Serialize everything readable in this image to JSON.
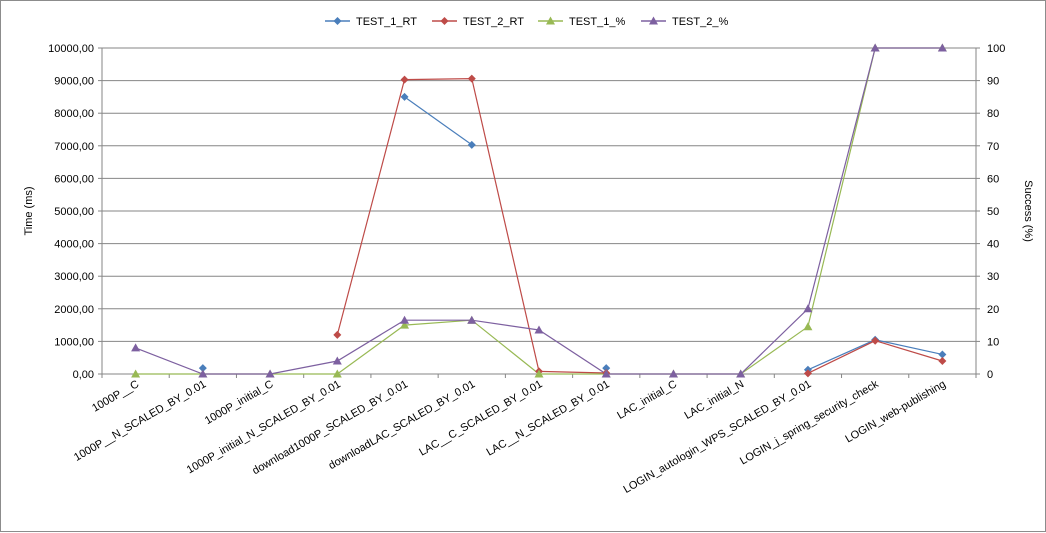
{
  "chart_data": {
    "type": "line",
    "title": "",
    "xlabel": "",
    "ylabel": "Time (ms)",
    "y2label": "Success (%)",
    "ylim": [
      0,
      10000
    ],
    "y2lim": [
      0,
      100
    ],
    "yticks": [
      "0,00",
      "1000,00",
      "2000,00",
      "3000,00",
      "4000,00",
      "5000,00",
      "6000,00",
      "7000,00",
      "8000,00",
      "9000,00",
      "10000,00"
    ],
    "y2ticks": [
      "0",
      "10",
      "20",
      "30",
      "40",
      "50",
      "60",
      "70",
      "80",
      "90",
      "100"
    ],
    "grid": true,
    "legend_position": "top",
    "categories": [
      "1000P__C",
      "1000P__N_SCALED_BY_0.01",
      "1000P_initial_C",
      "1000P_initial_N_SCALED_BY_0.01",
      "download1000P_SCALED_BY_0.01",
      "downloadLAC_SCALED_BY_0.01",
      "LAC__C_SCALED_BY_0.01",
      "LAC__N_SCALED_BY_0.01",
      "LAC_initial_C",
      "LAC_initial_N",
      "LOGIN_autologin_WPS_SCALED_BY_0.01",
      "LOGIN_j_spring_security_check",
      "LOGIN_web-publishing"
    ],
    "series": [
      {
        "name": "TEST_1_RT",
        "axis": "left",
        "color": "#4a7ebb",
        "marker": "diamond",
        "values": [
          null,
          180,
          null,
          null,
          8500,
          7030,
          null,
          180,
          null,
          null,
          130,
          1050,
          600
        ]
      },
      {
        "name": "TEST_2_RT",
        "axis": "left",
        "color": "#be4b48",
        "marker": "diamond",
        "values": [
          null,
          null,
          null,
          1200,
          9030,
          9060,
          80,
          30,
          null,
          null,
          20,
          1020,
          400
        ]
      },
      {
        "name": "TEST_1_%",
        "axis": "right",
        "color": "#98b954",
        "marker": "triangle",
        "values": [
          0,
          0,
          0,
          0,
          15,
          16.5,
          0,
          0,
          0,
          0,
          14.5,
          100,
          100
        ]
      },
      {
        "name": "TEST_2_%",
        "axis": "right",
        "color": "#7d60a0",
        "marker": "triangle",
        "values": [
          8,
          0,
          0,
          4,
          16.5,
          16.5,
          13.5,
          0,
          0,
          0,
          20,
          100,
          100
        ]
      }
    ]
  }
}
